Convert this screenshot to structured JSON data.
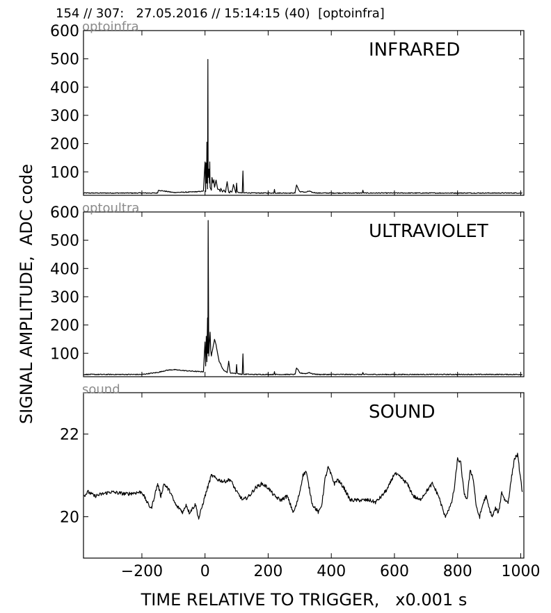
{
  "header": {
    "text": "154 // 307:   27.05.2016 // 15:14:15 (40)  [optoinfra]"
  },
  "ylabel": "SIGNAL AMPLITUDE,  ADC code",
  "xlabel": "TIME RELATIVE TO TRIGGER,   x0.001 s",
  "chart_data": [
    {
      "type": "line",
      "tag": "optoinfra",
      "title": "INFRARED",
      "xlim": [
        -385,
        1010
      ],
      "ylim": [
        17,
        600
      ],
      "x_ticks": [
        -200,
        0,
        200,
        400,
        600,
        800,
        1000
      ],
      "y_ticks": [
        100,
        200,
        300,
        400,
        500,
        600
      ],
      "baseline": 25,
      "series": [
        {
          "x": [
            -385,
            -150,
            -148,
            -100,
            -60,
            -20,
            -5,
            0,
            2,
            3,
            5,
            6,
            8,
            9,
            10,
            12,
            14,
            15,
            16,
            18,
            20,
            22,
            25,
            28,
            30,
            35,
            40,
            45,
            48,
            50,
            55,
            60,
            65,
            70,
            75,
            78,
            80,
            85,
            90,
            98,
            100,
            102,
            110,
            118,
            120,
            122,
            130,
            150,
            200,
            218,
            220,
            222,
            250,
            285,
            290,
            295,
            300,
            320,
            330,
            340,
            360,
            400,
            498,
            500,
            502,
            600,
            700,
            800,
            900,
            1005
          ],
          "y": [
            25,
            25,
            35,
            27,
            28,
            30,
            32,
            135,
            30,
            132,
            60,
            205,
            40,
            498,
            80,
            110,
            60,
            135,
            45,
            40,
            35,
            80,
            60,
            72,
            45,
            70,
            40,
            38,
            30,
            42,
            30,
            35,
            28,
            65,
            28,
            25,
            32,
            28,
            55,
            25,
            60,
            28,
            26,
            25,
            103,
            25,
            26,
            25,
            25,
            25,
            38,
            25,
            25,
            25,
            55,
            40,
            30,
            28,
            32,
            27,
            25,
            25,
            25,
            35,
            25,
            25,
            25,
            25,
            25,
            25
          ]
        }
      ]
    },
    {
      "type": "line",
      "tag": "optoultra",
      "title": "ULTRAVIOLET",
      "xlim": [
        -385,
        1010
      ],
      "ylim": [
        17,
        600
      ],
      "x_ticks": [
        -200,
        0,
        200,
        400,
        600,
        800,
        1000
      ],
      "y_ticks": [
        100,
        200,
        300,
        400,
        500,
        600
      ],
      "baseline": 25,
      "series": [
        {
          "x": [
            -385,
            -200,
            -150,
            -120,
            -100,
            -60,
            -20,
            -5,
            0,
            2,
            4,
            6,
            8,
            9,
            10,
            12,
            14,
            16,
            18,
            20,
            25,
            30,
            35,
            40,
            45,
            50,
            55,
            60,
            65,
            70,
            75,
            80,
            90,
            98,
            100,
            102,
            110,
            118,
            120,
            122,
            130,
            150,
            200,
            218,
            220,
            222,
            250,
            285,
            290,
            295,
            300,
            320,
            330,
            340,
            360,
            400,
            498,
            500,
            502,
            600,
            700,
            800,
            900,
            1005
          ],
          "y": [
            25,
            25,
            32,
            40,
            42,
            38,
            35,
            35,
            140,
            55,
            160,
            70,
            225,
            100,
            570,
            90,
            140,
            175,
            110,
            90,
            120,
            148,
            130,
            100,
            70,
            62,
            45,
            40,
            35,
            32,
            72,
            30,
            30,
            28,
            60,
            28,
            27,
            25,
            98,
            25,
            26,
            25,
            25,
            25,
            35,
            25,
            25,
            25,
            48,
            40,
            30,
            28,
            32,
            27,
            25,
            25,
            25,
            32,
            25,
            25,
            25,
            25,
            25,
            25
          ]
        }
      ]
    },
    {
      "type": "line",
      "tag": "sound",
      "title": "SOUND",
      "xlim": [
        -385,
        1010
      ],
      "ylim": [
        19,
        23
      ],
      "x_ticks": [
        -200,
        0,
        200,
        400,
        600,
        800,
        1000
      ],
      "y_ticks": [
        20,
        22
      ],
      "series": [
        {
          "x": [
            -385,
            -370,
            -350,
            -300,
            -250,
            -200,
            -180,
            -170,
            -160,
            -150,
            -140,
            -130,
            -120,
            -110,
            -100,
            -90,
            -80,
            -70,
            -60,
            -50,
            -40,
            -30,
            -20,
            0,
            20,
            40,
            60,
            80,
            100,
            120,
            140,
            160,
            180,
            200,
            220,
            240,
            260,
            280,
            290,
            300,
            310,
            320,
            340,
            350,
            360,
            370,
            380,
            390,
            400,
            410,
            420,
            440,
            460,
            480,
            500,
            520,
            540,
            560,
            580,
            600,
            620,
            640,
            660,
            680,
            700,
            720,
            740,
            760,
            780,
            790,
            800,
            810,
            820,
            830,
            840,
            850,
            860,
            870,
            880,
            890,
            900,
            910,
            920,
            930,
            940,
            950,
            960,
            970,
            980,
            990,
            1000,
            1005
          ],
          "y": [
            20.5,
            20.6,
            20.5,
            20.6,
            20.55,
            20.6,
            20.3,
            20.2,
            20.5,
            20.8,
            20.5,
            20.8,
            20.7,
            20.6,
            20.4,
            20.25,
            20.2,
            20.1,
            20.3,
            20.1,
            20.2,
            20.3,
            19.95,
            20.5,
            21.0,
            20.9,
            20.85,
            20.9,
            20.6,
            20.4,
            20.5,
            20.7,
            20.8,
            20.7,
            20.5,
            20.4,
            20.5,
            20.1,
            20.3,
            20.6,
            21.0,
            21.1,
            20.3,
            20.2,
            20.1,
            20.3,
            20.9,
            21.2,
            21.0,
            20.8,
            20.9,
            20.7,
            20.4,
            20.4,
            20.4,
            20.4,
            20.35,
            20.5,
            20.7,
            21.05,
            20.95,
            20.8,
            20.5,
            20.4,
            20.6,
            20.8,
            20.5,
            20.0,
            20.3,
            20.7,
            21.4,
            21.3,
            20.6,
            20.4,
            21.15,
            20.9,
            20.2,
            20.0,
            20.3,
            20.5,
            20.2,
            20.0,
            20.2,
            20.1,
            20.6,
            20.4,
            20.35,
            20.9,
            21.4,
            21.5,
            20.9,
            20.6
          ]
        }
      ]
    }
  ]
}
